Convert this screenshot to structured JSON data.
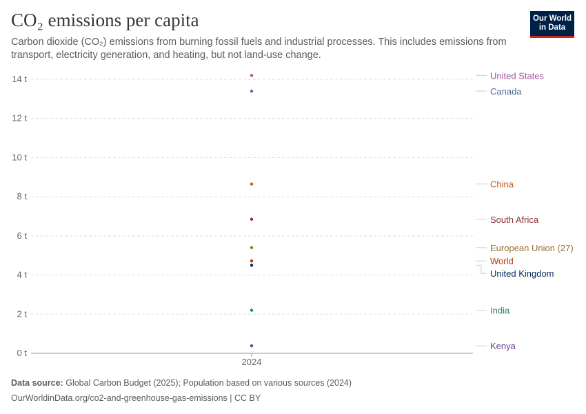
{
  "header": {
    "title": "CO₂ emissions per capita",
    "subtitle": "Carbon dioxide (CO₂) emissions from burning fossil fuels and industrial processes. This includes emissions from transport, electricity generation, and heating, but not land-use change.",
    "logo": "Our World in Data"
  },
  "chart_data": {
    "type": "scatter",
    "title": "CO₂ emissions per capita",
    "categories": [
      "2024"
    ],
    "ylim": [
      0,
      14.5
    ],
    "yticks": [
      0,
      2,
      4,
      6,
      8,
      10,
      12,
      14
    ],
    "ytick_labels": [
      "0 t",
      "2 t",
      "4 t",
      "6 t",
      "8 t",
      "10 t",
      "12 t",
      "14 t"
    ],
    "grid": true,
    "legend": "right (direct labels)",
    "series": [
      {
        "name": "United States",
        "values": [
          14.2
        ],
        "color": "#a2559c"
      },
      {
        "name": "Canada",
        "values": [
          13.4
        ],
        "color": "#4c6a9c"
      },
      {
        "name": "China",
        "values": [
          8.65
        ],
        "color": "#c05917"
      },
      {
        "name": "South Africa",
        "values": [
          6.85
        ],
        "color": "#883039"
      },
      {
        "name": "European Union (27)",
        "values": [
          5.4
        ],
        "color": "#996d39"
      },
      {
        "name": "World",
        "values": [
          4.72
        ],
        "color": "#b13507"
      },
      {
        "name": "United Kingdom",
        "values": [
          4.5
        ],
        "color": "#00295b"
      },
      {
        "name": "India",
        "values": [
          2.2
        ],
        "color": "#2c8465"
      },
      {
        "name": "Kenya",
        "values": [
          0.38
        ],
        "color": "#6d3e91"
      }
    ]
  },
  "footer": {
    "source_label": "Data source:",
    "source": "Global Carbon Budget (2025); Population based on various sources (2024)",
    "url": "OurWorldinData.org/co2-and-greenhouse-gas-emissions | CC BY"
  }
}
